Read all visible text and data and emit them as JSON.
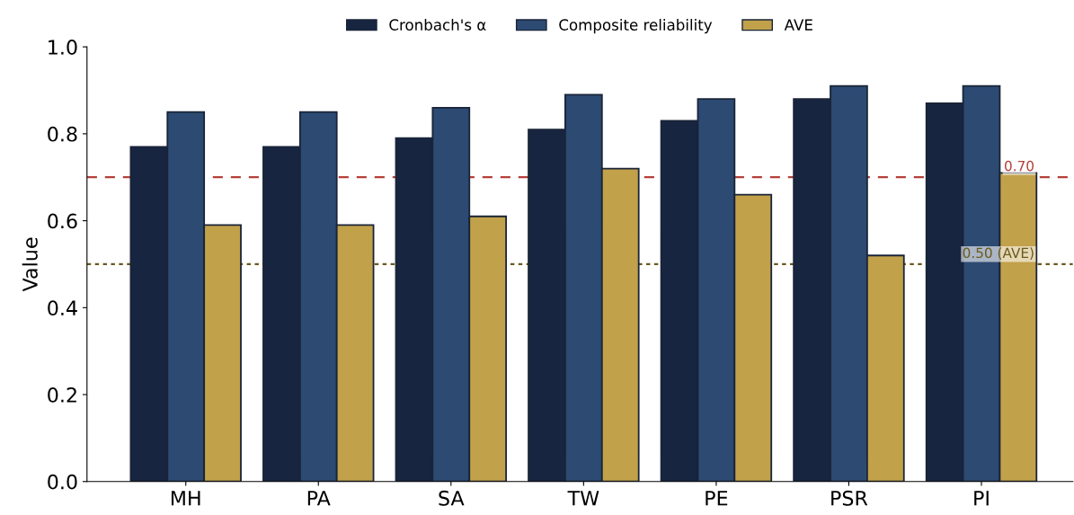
{
  "chart_data": {
    "type": "bar",
    "ylabel": "Value",
    "categories": [
      "MH",
      "PA",
      "SA",
      "TW",
      "PE",
      "PSR",
      "PI"
    ],
    "series": [
      {
        "name": "Cronbach's α",
        "color": "#172540",
        "values": [
          0.77,
          0.77,
          0.79,
          0.81,
          0.83,
          0.88,
          0.87
        ]
      },
      {
        "name": "Composite reliability",
        "color": "#2c4a72",
        "values": [
          0.85,
          0.85,
          0.86,
          0.89,
          0.88,
          0.91,
          0.91
        ]
      },
      {
        "name": "AVE",
        "color": "#c1a14a",
        "values": [
          0.59,
          0.59,
          0.61,
          0.72,
          0.66,
          0.52,
          0.71
        ]
      }
    ],
    "ylim": [
      0,
      1.0
    ],
    "yticks": [
      {
        "value": 0,
        "label": "0.0"
      },
      0.2,
      0.4,
      0.6,
      0.8,
      {
        "value": 1,
        "label": "1.0"
      }
    ],
    "ref_lines": [
      {
        "axis": "y",
        "value": 0.7,
        "label": "0.70",
        "color": "#b5403a",
        "line_style": "dashed"
      },
      {
        "axis": "y",
        "value": 0.5,
        "label": "0.50 (AVE)",
        "color": "#6b5a1e",
        "line_style": "dotted"
      }
    ],
    "grid": false,
    "legend": "top"
  }
}
